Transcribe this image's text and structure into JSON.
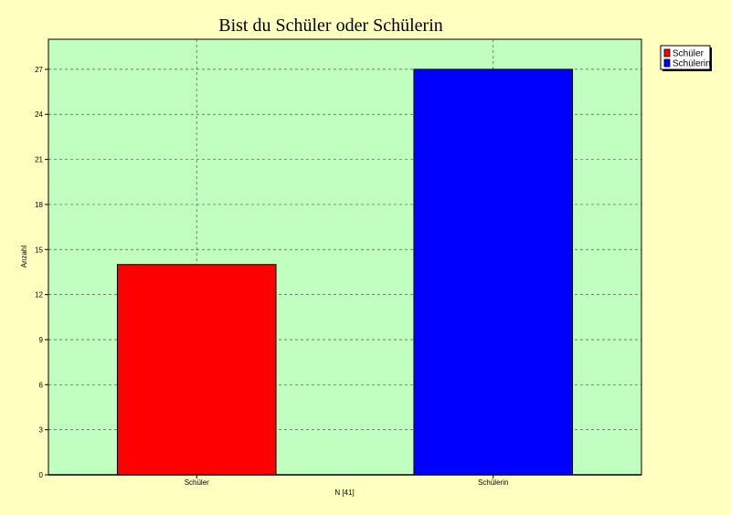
{
  "chart_data": {
    "type": "bar",
    "title": "Bist du Schüler oder Schülerin",
    "xlabel": "N [41]",
    "ylabel": "Anzahl",
    "categories": [
      "Schüler",
      "Schülerin"
    ],
    "values": [
      14,
      27
    ],
    "ylim": [
      0,
      29
    ],
    "yticks": [
      0,
      3,
      6,
      9,
      12,
      15,
      18,
      21,
      24,
      27
    ],
    "grid": true,
    "legend_position": "top-right",
    "legend": [
      "Schüler",
      "Schülerin"
    ],
    "colors": {
      "Schüler": "#ff0000",
      "Schülerin": "#0000ff",
      "plot_background": "#c0ffc0",
      "page_background": "#ffffc0"
    }
  }
}
